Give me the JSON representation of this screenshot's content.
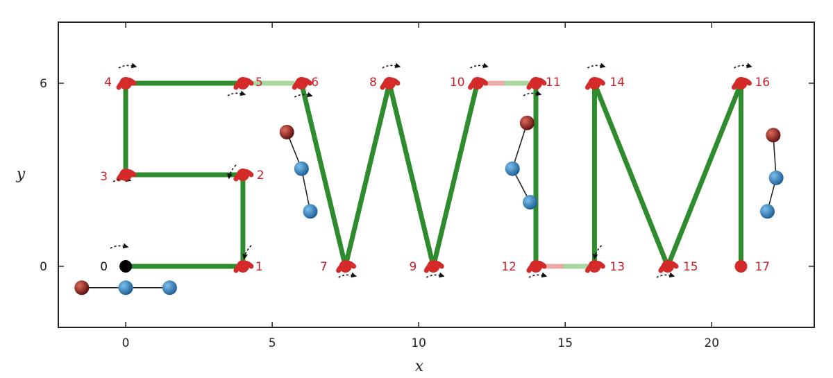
{
  "chart_data": {
    "type": "scatter",
    "xlabel": "x",
    "ylabel": "y",
    "xlim": [
      -2.3,
      23.5
    ],
    "ylim": [
      -2.0,
      8.0
    ],
    "xticks": [
      0,
      5,
      10,
      15,
      20
    ],
    "yticks": [
      0,
      6
    ],
    "grid": false,
    "waypoints": [
      {
        "label": "0",
        "x": 0,
        "y": 0
      },
      {
        "label": "1",
        "x": 4,
        "y": 0
      },
      {
        "label": "2",
        "x": 4,
        "y": 3
      },
      {
        "label": "3",
        "x": 0,
        "y": 3
      },
      {
        "label": "4",
        "x": 0,
        "y": 6
      },
      {
        "label": "5",
        "x": 4,
        "y": 6
      },
      {
        "label": "6",
        "x": 6,
        "y": 6
      },
      {
        "label": "7",
        "x": 7.5,
        "y": 0
      },
      {
        "label": "8",
        "x": 9,
        "y": 6
      },
      {
        "label": "9",
        "x": 10.5,
        "y": 0
      },
      {
        "label": "10",
        "x": 12,
        "y": 6
      },
      {
        "label": "11",
        "x": 14,
        "y": 6
      },
      {
        "label": "12",
        "x": 14,
        "y": 0
      },
      {
        "label": "13",
        "x": 16,
        "y": 0
      },
      {
        "label": "14",
        "x": 16,
        "y": 6
      },
      {
        "label": "15",
        "x": 18.5,
        "y": 0
      },
      {
        "label": "16",
        "x": 21,
        "y": 6
      },
      {
        "label": "17",
        "x": 21,
        "y": 0
      }
    ],
    "segments": [
      {
        "from": "0",
        "to": "1",
        "style": "green"
      },
      {
        "from": "1",
        "to": "2",
        "style": "green"
      },
      {
        "from": "2",
        "to": "3",
        "style": "green"
      },
      {
        "from": "3",
        "to": "4",
        "style": "green"
      },
      {
        "from": "4",
        "to": "5",
        "style": "green"
      },
      {
        "from": "5",
        "to": "6",
        "style": "light-green"
      },
      {
        "from": "6",
        "to": "7",
        "style": "green"
      },
      {
        "from": "7",
        "to": "8",
        "style": "green"
      },
      {
        "from": "8",
        "to": "9",
        "style": "green"
      },
      {
        "from": "9",
        "to": "10",
        "style": "green"
      },
      {
        "from": "10",
        "to": "11",
        "style": "pink-light-green"
      },
      {
        "from": "11",
        "to": "12",
        "style": "green"
      },
      {
        "from": "12",
        "to": "13",
        "style": "pink-light-green"
      },
      {
        "from": "13",
        "to": "14",
        "style": "green"
      },
      {
        "from": "14",
        "to": "15",
        "style": "green"
      },
      {
        "from": "15",
        "to": "16",
        "style": "green"
      },
      {
        "from": "16",
        "to": "17",
        "style": "green"
      }
    ],
    "turn_arrows": [
      "0",
      "1",
      "2",
      "3",
      "4",
      "5",
      "6",
      "7",
      "8",
      "9",
      "10",
      "11",
      "12",
      "13",
      "14",
      "15",
      "16"
    ],
    "swimmer_icons": [
      {
        "orientation": "horizontal",
        "x": [
          -1.5,
          0,
          1.5
        ],
        "y": [
          -0.7,
          -0.7,
          -0.7
        ]
      },
      {
        "orientation": "zigzag",
        "x": [
          5.5,
          6.0,
          6.3
        ],
        "y": [
          4.4,
          3.2,
          1.8
        ]
      },
      {
        "orientation": "zigzag",
        "x": [
          13.7,
          13.2,
          13.8
        ],
        "y": [
          4.7,
          3.2,
          2.1
        ]
      },
      {
        "orientation": "zigzag",
        "x": [
          22.1,
          22.2,
          21.9
        ],
        "y": [
          4.3,
          2.9,
          1.8
        ]
      }
    ]
  },
  "colors": {
    "trajectory": "#2e8b2e",
    "trajectory_light": "#a8d8a0",
    "trajectory_pink": "#eaa8a8",
    "turn": "#d42a2a",
    "waypoint": "#d42a2a",
    "start_point": "#000000",
    "label": "#c8202a",
    "bead_red": "#b22222",
    "bead_blue": "#2f7fc1",
    "axis": "#222222"
  }
}
